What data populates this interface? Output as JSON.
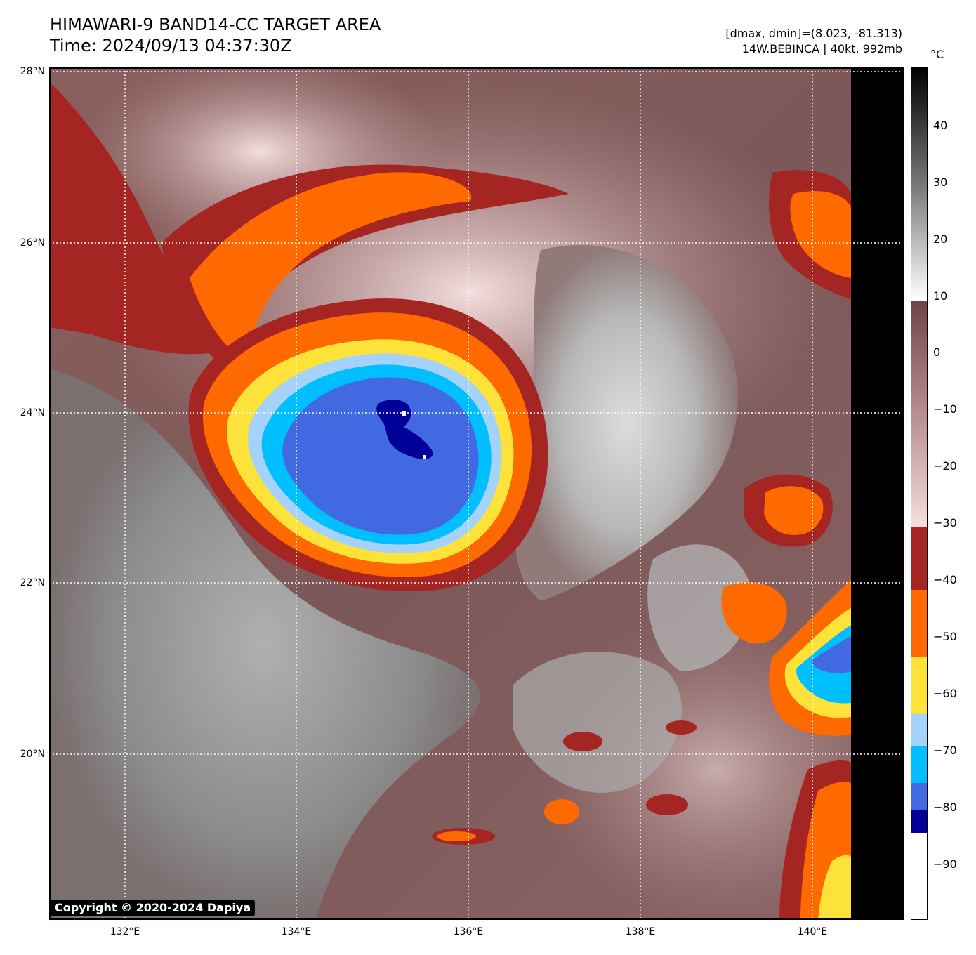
{
  "title": {
    "line1": "HIMAWARI-9 BAND14-CC TARGET AREA",
    "line2": "Time: 2024/09/13 04:37:30Z"
  },
  "info": {
    "line1": "[dmax, dmin]=(8.023, -81.313)",
    "line2": "14W.BEBINCA | 40kt, 992mb"
  },
  "map": {
    "lat_labels": [
      "28°N",
      "26°N",
      "24°N",
      "22°N",
      "20°N"
    ],
    "lon_labels": [
      "132°E",
      "134°E",
      "136°E",
      "138°E",
      "140°E"
    ]
  },
  "colorbar": {
    "unit": "°C",
    "ticks": [
      "40",
      "30",
      "20",
      "10",
      "0",
      "−10",
      "−20",
      "−30",
      "−40",
      "−50",
      "−60",
      "−70",
      "−80",
      "−90"
    ],
    "colors": {
      "black_top": "#000000",
      "gray_mid": "#8a8a8a",
      "white_low": "#ffffff",
      "brown_dark": "#7a5050",
      "pink_light": "#f3d8d8",
      "dark_red": "#a52522",
      "orange": "#ff6a00",
      "yellow": "#fde23a",
      "light_blue": "#a5d2fa",
      "cyan": "#00bfff",
      "royal_blue": "#4169e1",
      "navy": "#000099",
      "white_bottom": "#ffffff"
    }
  },
  "copyright": "Copyright © 2020-2024 Dapiya"
}
